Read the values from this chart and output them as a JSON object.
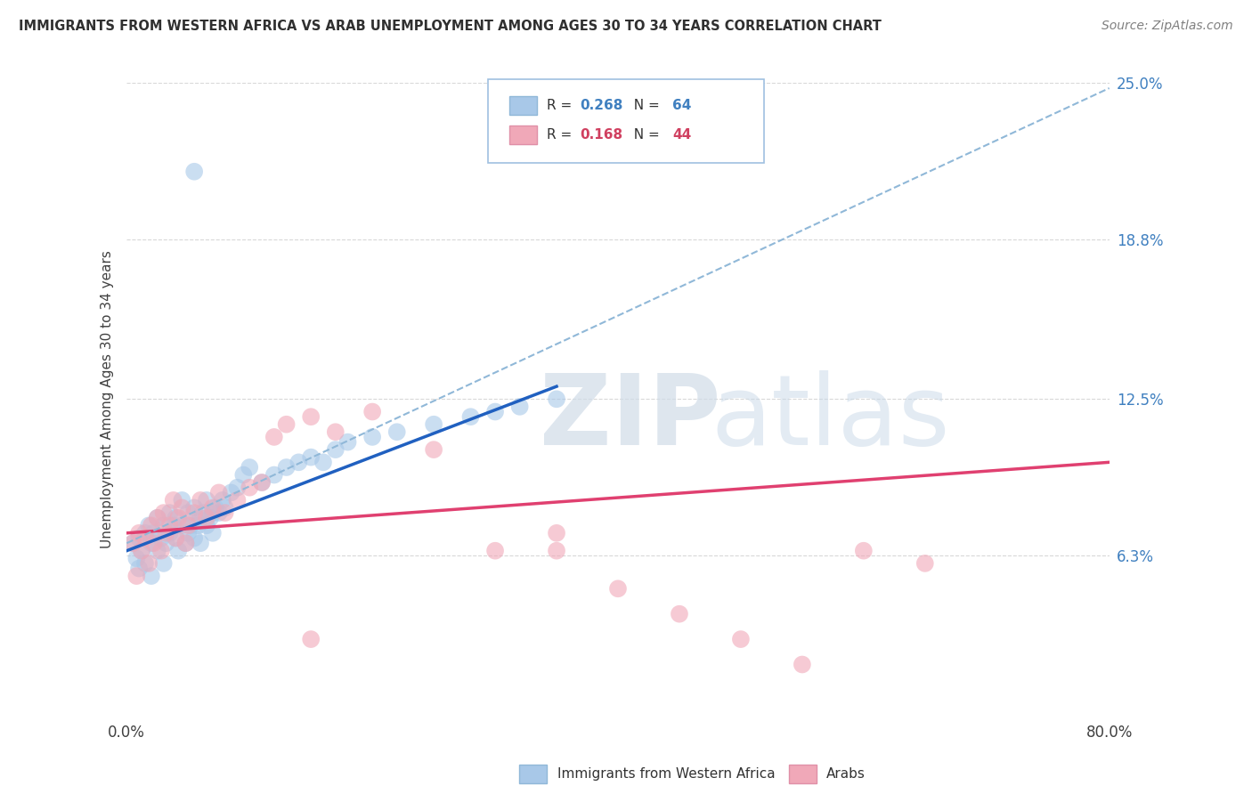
{
  "title": "IMMIGRANTS FROM WESTERN AFRICA VS ARAB UNEMPLOYMENT AMONG AGES 30 TO 34 YEARS CORRELATION CHART",
  "source": "Source: ZipAtlas.com",
  "ylabel": "Unemployment Among Ages 30 to 34 years",
  "xlim": [
    0,
    0.8
  ],
  "ylim": [
    0,
    0.25
  ],
  "yticks": [
    0.063,
    0.125,
    0.188,
    0.25
  ],
  "ytick_labels": [
    "6.3%",
    "12.5%",
    "18.8%",
    "25.0%"
  ],
  "blue_color": "#a8c8e8",
  "pink_color": "#f0a8b8",
  "trend_blue": "#2060c0",
  "trend_pink": "#e04070",
  "trend_dashed_color": "#90b8d8",
  "watermark_text": "ZIPAtlas",
  "background_color": "#ffffff",
  "grid_color": "#d8d8d8",
  "blue_scatter_x": [
    0.005,
    0.008,
    0.01,
    0.01,
    0.012,
    0.015,
    0.015,
    0.018,
    0.02,
    0.02,
    0.022,
    0.025,
    0.025,
    0.028,
    0.03,
    0.03,
    0.032,
    0.035,
    0.035,
    0.038,
    0.04,
    0.04,
    0.042,
    0.045,
    0.045,
    0.048,
    0.05,
    0.05,
    0.052,
    0.055,
    0.055,
    0.058,
    0.06,
    0.06,
    0.062,
    0.065,
    0.065,
    0.068,
    0.07,
    0.07,
    0.072,
    0.075,
    0.078,
    0.08,
    0.085,
    0.09,
    0.095,
    0.1,
    0.11,
    0.12,
    0.13,
    0.14,
    0.15,
    0.16,
    0.17,
    0.18,
    0.2,
    0.22,
    0.25,
    0.28,
    0.3,
    0.32,
    0.35,
    0.055
  ],
  "blue_scatter_y": [
    0.068,
    0.062,
    0.07,
    0.058,
    0.065,
    0.072,
    0.06,
    0.075,
    0.068,
    0.055,
    0.072,
    0.065,
    0.078,
    0.07,
    0.075,
    0.06,
    0.068,
    0.072,
    0.08,
    0.075,
    0.07,
    0.078,
    0.065,
    0.075,
    0.085,
    0.068,
    0.072,
    0.08,
    0.075,
    0.07,
    0.082,
    0.075,
    0.078,
    0.068,
    0.08,
    0.075,
    0.085,
    0.078,
    0.08,
    0.072,
    0.082,
    0.08,
    0.085,
    0.082,
    0.088,
    0.09,
    0.095,
    0.098,
    0.092,
    0.095,
    0.098,
    0.1,
    0.102,
    0.1,
    0.105,
    0.108,
    0.11,
    0.112,
    0.115,
    0.118,
    0.12,
    0.122,
    0.125,
    0.215
  ],
  "pink_scatter_x": [
    0.005,
    0.008,
    0.01,
    0.012,
    0.015,
    0.018,
    0.02,
    0.022,
    0.025,
    0.028,
    0.03,
    0.032,
    0.035,
    0.038,
    0.04,
    0.042,
    0.045,
    0.048,
    0.05,
    0.055,
    0.06,
    0.065,
    0.07,
    0.075,
    0.08,
    0.09,
    0.1,
    0.11,
    0.12,
    0.13,
    0.15,
    0.17,
    0.2,
    0.25,
    0.3,
    0.35,
    0.4,
    0.45,
    0.5,
    0.55,
    0.6,
    0.65,
    0.35,
    0.15
  ],
  "pink_scatter_y": [
    0.068,
    0.055,
    0.072,
    0.065,
    0.07,
    0.06,
    0.075,
    0.068,
    0.078,
    0.065,
    0.08,
    0.072,
    0.075,
    0.085,
    0.07,
    0.078,
    0.082,
    0.068,
    0.075,
    0.08,
    0.085,
    0.078,
    0.082,
    0.088,
    0.08,
    0.085,
    0.09,
    0.092,
    0.11,
    0.115,
    0.118,
    0.112,
    0.12,
    0.105,
    0.065,
    0.072,
    0.05,
    0.04,
    0.03,
    0.02,
    0.065,
    0.06,
    0.065,
    0.03
  ],
  "blue_trend_x0": 0.0,
  "blue_trend_y0": 0.065,
  "blue_trend_x1": 0.35,
  "blue_trend_y1": 0.13,
  "pink_trend_x0": 0.0,
  "pink_trend_y0": 0.072,
  "pink_trend_x1": 0.8,
  "pink_trend_y1": 0.1,
  "dashed_trend_x0": 0.0,
  "dashed_trend_y0": 0.068,
  "dashed_trend_x1": 0.8,
  "dashed_trend_y1": 0.248
}
